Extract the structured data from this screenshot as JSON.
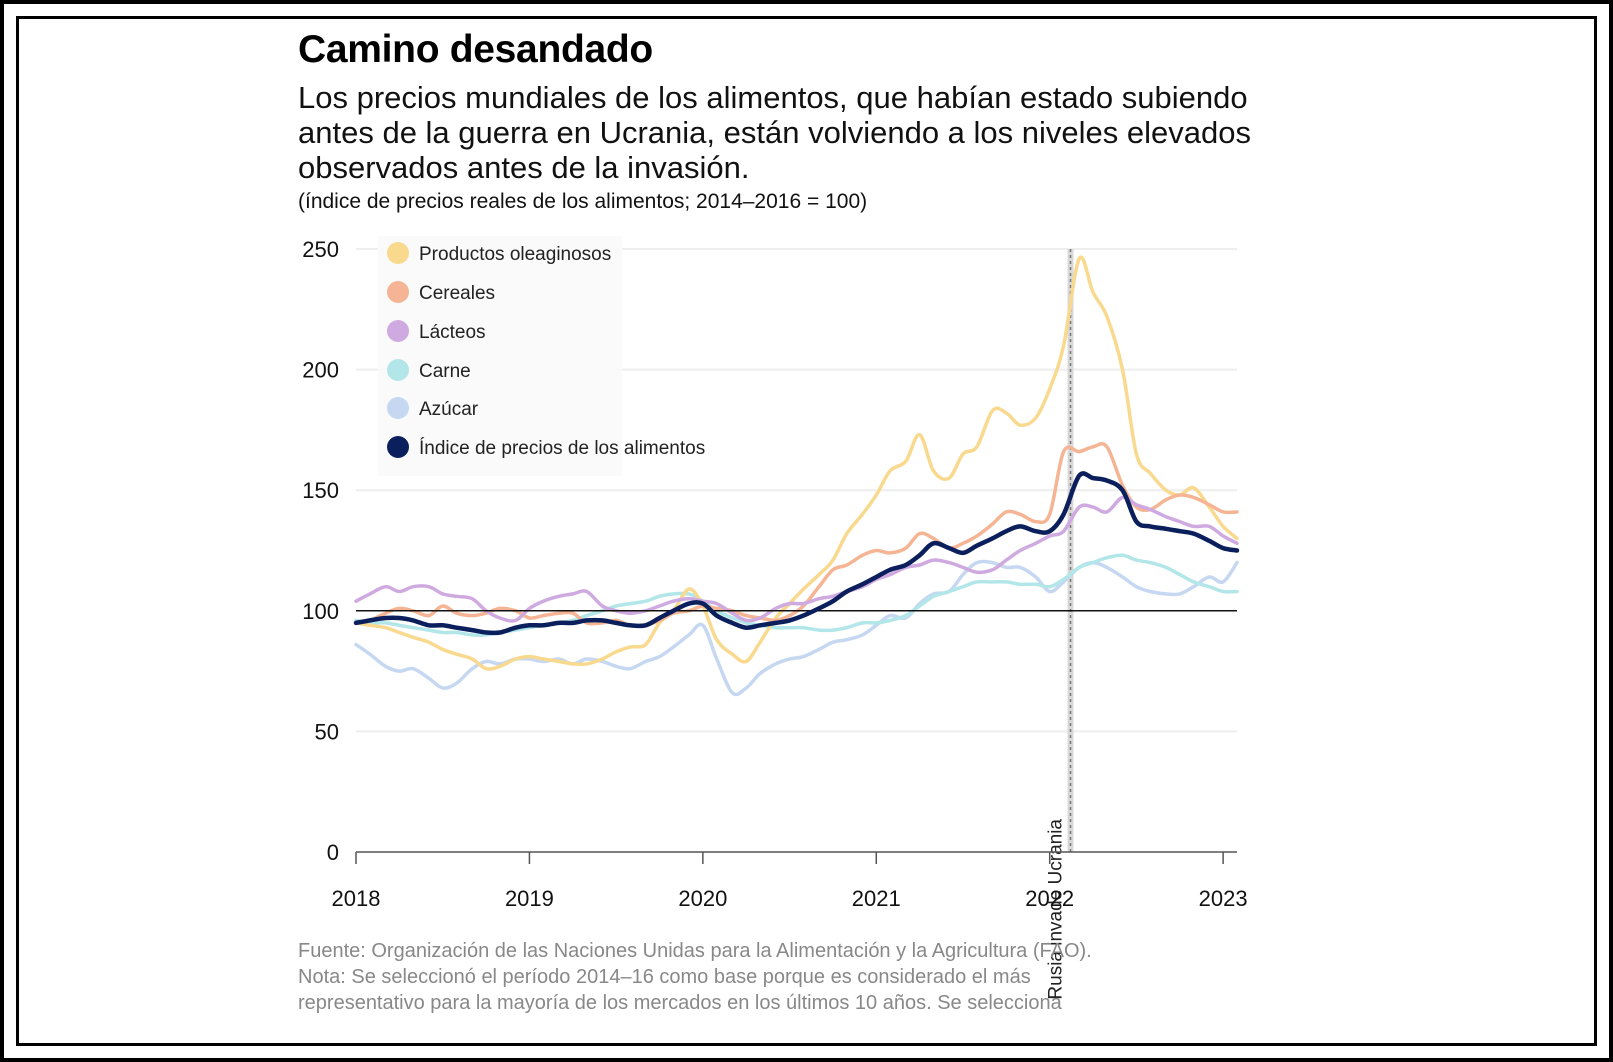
{
  "chart_data": {
    "type": "line",
    "title": "Camino desandado",
    "subtitle": "Los precios mundiales de los alimentos, que habían estado subiendo antes de la guerra en Ucrania, están volviendo a los niveles elevados observados antes de la invasión.",
    "units": "(índice de precios reales de los alimentos; 2014–2016 = 100)",
    "xlabel": "",
    "ylabel": "",
    "xlim": [
      2018,
      2023.08
    ],
    "ylim": [
      0,
      250
    ],
    "yticks": [
      0,
      50,
      100,
      150,
      200,
      250
    ],
    "xticks": [
      2018,
      2019,
      2020,
      2021,
      2022,
      2023
    ],
    "x_tick_labels": [
      "2018",
      "2019",
      "2020",
      "2021",
      "2022",
      "2023"
    ],
    "y_tick_labels": [
      "0",
      "50",
      "100",
      "150",
      "200",
      "250"
    ],
    "reference_line": 100,
    "annotation": {
      "x": 2022.12,
      "label": "Rusia invade Ucrania"
    },
    "legend_position": "top-left",
    "series": [
      {
        "name": "Productos oleaginosos",
        "color": "#f8d98e",
        "x": [
          2018.0,
          2018.08,
          2018.17,
          2018.25,
          2018.33,
          2018.42,
          2018.5,
          2018.58,
          2018.67,
          2018.75,
          2018.83,
          2018.92,
          2019.0,
          2019.08,
          2019.17,
          2019.25,
          2019.33,
          2019.42,
          2019.5,
          2019.58,
          2019.67,
          2019.75,
          2019.83,
          2019.92,
          2020.0,
          2020.08,
          2020.17,
          2020.25,
          2020.33,
          2020.42,
          2020.5,
          2020.58,
          2020.67,
          2020.75,
          2020.83,
          2020.92,
          2021.0,
          2021.08,
          2021.17,
          2021.25,
          2021.33,
          2021.42,
          2021.5,
          2021.58,
          2021.67,
          2021.75,
          2021.83,
          2021.92,
          2022.0,
          2022.08,
          2022.17,
          2022.25,
          2022.33,
          2022.42,
          2022.5,
          2022.58,
          2022.67,
          2022.75,
          2022.83,
          2022.92,
          2023.0,
          2023.08
        ],
        "values": [
          95,
          94,
          93,
          91,
          89,
          87,
          84,
          82,
          80,
          76,
          77,
          80,
          81,
          80,
          79,
          78,
          78,
          80,
          83,
          85,
          86,
          95,
          100,
          109,
          102,
          88,
          82,
          79,
          87,
          97,
          103,
          109,
          115,
          121,
          132,
          140,
          148,
          158,
          162,
          173,
          158,
          155,
          165,
          168,
          183,
          182,
          177,
          180,
          192,
          210,
          246,
          232,
          222,
          200,
          165,
          157,
          150,
          148,
          151,
          143,
          135,
          130
        ]
      },
      {
        "name": "Cereales",
        "color": "#f5b594",
        "x": [
          2018.0,
          2018.08,
          2018.17,
          2018.25,
          2018.33,
          2018.42,
          2018.5,
          2018.58,
          2018.67,
          2018.75,
          2018.83,
          2018.92,
          2019.0,
          2019.08,
          2019.17,
          2019.25,
          2019.33,
          2019.42,
          2019.5,
          2019.58,
          2019.67,
          2019.75,
          2019.83,
          2019.92,
          2020.0,
          2020.08,
          2020.17,
          2020.25,
          2020.33,
          2020.42,
          2020.5,
          2020.58,
          2020.67,
          2020.75,
          2020.83,
          2020.92,
          2021.0,
          2021.08,
          2021.17,
          2021.25,
          2021.33,
          2021.42,
          2021.5,
          2021.58,
          2021.67,
          2021.75,
          2021.83,
          2021.92,
          2022.0,
          2022.08,
          2022.17,
          2022.25,
          2022.33,
          2022.42,
          2022.5,
          2022.58,
          2022.67,
          2022.75,
          2022.83,
          2022.92,
          2023.0,
          2023.08
        ],
        "values": [
          95,
          96,
          99,
          101,
          100,
          98,
          102,
          99,
          98,
          99,
          101,
          100,
          97,
          98,
          99,
          99,
          95,
          95,
          96,
          94,
          94,
          96,
          99,
          100,
          102,
          101,
          100,
          98,
          97,
          96,
          98,
          102,
          110,
          117,
          119,
          123,
          125,
          124,
          126,
          132,
          130,
          126,
          128,
          131,
          136,
          141,
          140,
          137,
          140,
          166,
          166,
          168,
          168,
          152,
          143,
          142,
          146,
          148,
          147,
          144,
          141,
          141
        ]
      },
      {
        "name": "Lácteos",
        "color": "#cfaae0",
        "x": [
          2018.0,
          2018.08,
          2018.17,
          2018.25,
          2018.33,
          2018.42,
          2018.5,
          2018.58,
          2018.67,
          2018.75,
          2018.83,
          2018.92,
          2019.0,
          2019.08,
          2019.17,
          2019.25,
          2019.33,
          2019.42,
          2019.5,
          2019.58,
          2019.67,
          2019.75,
          2019.83,
          2019.92,
          2020.0,
          2020.08,
          2020.17,
          2020.25,
          2020.33,
          2020.42,
          2020.5,
          2020.58,
          2020.67,
          2020.75,
          2020.83,
          2020.92,
          2021.0,
          2021.08,
          2021.17,
          2021.25,
          2021.33,
          2021.42,
          2021.5,
          2021.58,
          2021.67,
          2021.75,
          2021.83,
          2021.92,
          2022.0,
          2022.08,
          2022.17,
          2022.25,
          2022.33,
          2022.42,
          2022.5,
          2022.58,
          2022.67,
          2022.75,
          2022.83,
          2022.92,
          2023.0,
          2023.08
        ],
        "values": [
          104,
          107,
          110,
          108,
          110,
          110,
          107,
          106,
          105,
          100,
          97,
          96,
          101,
          104,
          106,
          107,
          108,
          102,
          100,
          99,
          100,
          102,
          104,
          105,
          104,
          103,
          99,
          96,
          97,
          101,
          103,
          103,
          105,
          106,
          108,
          110,
          113,
          115,
          118,
          119,
          121,
          120,
          118,
          116,
          117,
          121,
          125,
          128,
          131,
          133,
          143,
          143,
          141,
          147,
          144,
          142,
          139,
          137,
          135,
          135,
          131,
          128
        ]
      },
      {
        "name": "Carne",
        "color": "#b2e6e8",
        "x": [
          2018.0,
          2018.08,
          2018.17,
          2018.25,
          2018.33,
          2018.42,
          2018.5,
          2018.58,
          2018.67,
          2018.75,
          2018.83,
          2018.92,
          2019.0,
          2019.08,
          2019.17,
          2019.25,
          2019.33,
          2019.42,
          2019.5,
          2019.58,
          2019.67,
          2019.75,
          2019.83,
          2019.92,
          2020.0,
          2020.08,
          2020.17,
          2020.25,
          2020.33,
          2020.42,
          2020.5,
          2020.58,
          2020.67,
          2020.75,
          2020.83,
          2020.92,
          2021.0,
          2021.08,
          2021.17,
          2021.25,
          2021.33,
          2021.42,
          2021.5,
          2021.58,
          2021.67,
          2021.75,
          2021.83,
          2021.92,
          2022.0,
          2022.08,
          2022.17,
          2022.25,
          2022.33,
          2022.42,
          2022.5,
          2022.58,
          2022.67,
          2022.75,
          2022.83,
          2022.92,
          2023.0,
          2023.08
        ],
        "values": [
          96,
          95,
          95,
          94,
          93,
          92,
          91,
          91,
          90,
          90,
          91,
          92,
          93,
          94,
          95,
          96,
          98,
          100,
          102,
          103,
          104,
          106,
          107,
          107,
          104,
          100,
          97,
          95,
          94,
          93,
          93,
          93,
          92,
          92,
          93,
          95,
          95,
          96,
          98,
          102,
          106,
          108,
          110,
          112,
          112,
          112,
          111,
          111,
          110,
          113,
          118,
          120,
          122,
          123,
          121,
          120,
          118,
          115,
          112,
          110,
          108,
          108
        ]
      },
      {
        "name": "Azúcar",
        "color": "#c6d8f1",
        "x": [
          2018.0,
          2018.08,
          2018.17,
          2018.25,
          2018.33,
          2018.42,
          2018.5,
          2018.58,
          2018.67,
          2018.75,
          2018.83,
          2018.92,
          2019.0,
          2019.08,
          2019.17,
          2019.25,
          2019.33,
          2019.42,
          2019.5,
          2019.58,
          2019.67,
          2019.75,
          2019.83,
          2019.92,
          2020.0,
          2020.08,
          2020.17,
          2020.25,
          2020.33,
          2020.42,
          2020.5,
          2020.58,
          2020.67,
          2020.75,
          2020.83,
          2020.92,
          2021.0,
          2021.08,
          2021.17,
          2021.25,
          2021.33,
          2021.42,
          2021.5,
          2021.58,
          2021.67,
          2021.75,
          2021.83,
          2021.92,
          2022.0,
          2022.08,
          2022.17,
          2022.25,
          2022.33,
          2022.42,
          2022.5,
          2022.58,
          2022.67,
          2022.75,
          2022.83,
          2022.92,
          2023.0,
          2023.08
        ],
        "values": [
          86,
          82,
          77,
          75,
          76,
          72,
          68,
          70,
          76,
          79,
          78,
          80,
          80,
          79,
          80,
          78,
          80,
          79,
          77,
          76,
          79,
          81,
          85,
          90,
          94,
          80,
          66,
          68,
          74,
          78,
          80,
          81,
          84,
          87,
          88,
          90,
          94,
          98,
          97,
          103,
          107,
          108,
          115,
          120,
          120,
          118,
          118,
          114,
          108,
          112,
          118,
          120,
          118,
          114,
          110,
          108,
          107,
          107,
          110,
          114,
          112,
          120
        ]
      },
      {
        "name": "Índice de precios de los alimentos",
        "color": "#0a1f5c",
        "x": [
          2018.0,
          2018.08,
          2018.17,
          2018.25,
          2018.33,
          2018.42,
          2018.5,
          2018.58,
          2018.67,
          2018.75,
          2018.83,
          2018.92,
          2019.0,
          2019.08,
          2019.17,
          2019.25,
          2019.33,
          2019.42,
          2019.5,
          2019.58,
          2019.67,
          2019.75,
          2019.83,
          2019.92,
          2020.0,
          2020.08,
          2020.17,
          2020.25,
          2020.33,
          2020.42,
          2020.5,
          2020.58,
          2020.67,
          2020.75,
          2020.83,
          2020.92,
          2021.0,
          2021.08,
          2021.17,
          2021.25,
          2021.33,
          2021.42,
          2021.5,
          2021.58,
          2021.67,
          2021.75,
          2021.83,
          2021.92,
          2022.0,
          2022.08,
          2022.17,
          2022.25,
          2022.33,
          2022.42,
          2022.5,
          2022.58,
          2022.67,
          2022.75,
          2022.83,
          2022.92,
          2023.0,
          2023.08
        ],
        "values": [
          95,
          96,
          97,
          97,
          96,
          94,
          94,
          93,
          92,
          91,
          91,
          93,
          94,
          94,
          95,
          95,
          96,
          96,
          95,
          94,
          94,
          97,
          100,
          103,
          103,
          98,
          95,
          93,
          94,
          95,
          96,
          98,
          101,
          104,
          108,
          111,
          114,
          117,
          119,
          123,
          128,
          126,
          124,
          127,
          130,
          133,
          135,
          133,
          133,
          140,
          156,
          155,
          154,
          150,
          137,
          135,
          134,
          133,
          132,
          129,
          126,
          125
        ]
      }
    ]
  },
  "footer": {
    "source": "Fuente: Organización de las Naciones Unidas para la Alimentación y la Agricultura (FAO).",
    "note_line1": "Nota: Se seleccionó el período 2014–16 como base porque es considerado el más",
    "note_line2": "representativo para la mayoría de los mercados en los últimos 10 años. Se selecciona"
  }
}
